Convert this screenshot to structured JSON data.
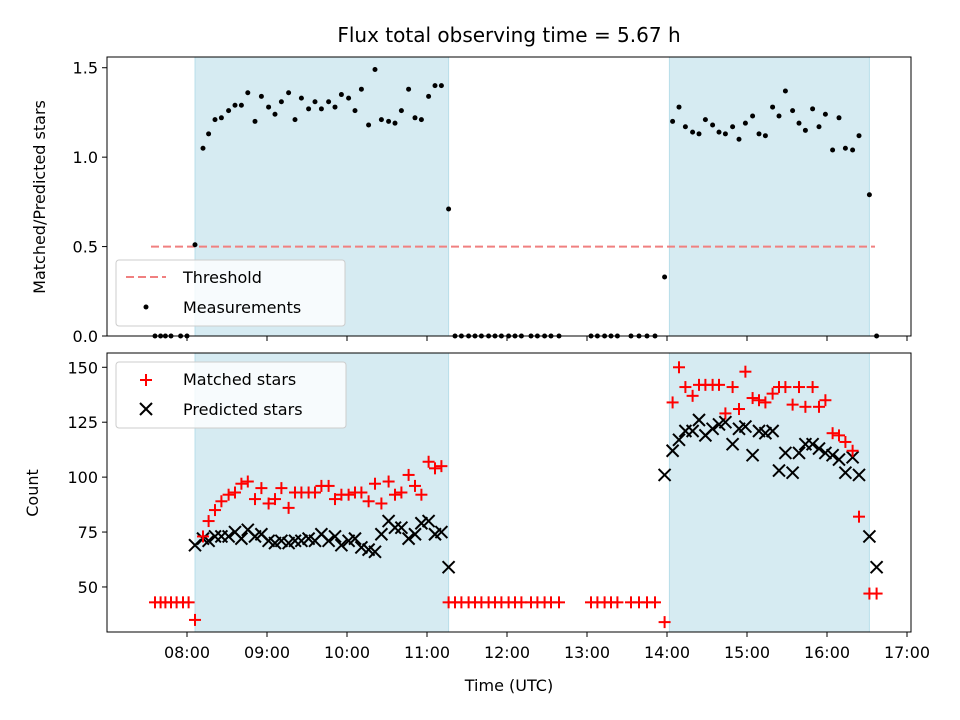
{
  "chart_data": [
    {
      "type": "scatter",
      "title": "Flux total observing time = 5.67 h",
      "ylabel": "Matched/Predicted stars",
      "xlabel": "",
      "xlim": [
        7.0,
        17.05
      ],
      "ylim": [
        0.0,
        1.56
      ],
      "yticks": [
        0.0,
        0.5,
        1.0,
        1.5
      ],
      "ytick_labels": [
        "0.0",
        "0.5",
        "1.0",
        "1.5"
      ],
      "shaded_spans": [
        [
          8.1,
          11.27
        ],
        [
          14.03,
          16.53
        ]
      ],
      "threshold": {
        "name": "Threshold",
        "y": 0.5,
        "x_range": [
          7.55,
          16.6
        ],
        "color": "#f08080"
      },
      "legend": {
        "placement": "lower-left",
        "entries": [
          "Threshold",
          "Measurements"
        ]
      },
      "series": [
        {
          "name": "Measurements",
          "marker": "dot",
          "color": "#000000",
          "x": [
            7.6,
            7.67,
            7.73,
            7.8,
            7.92,
            8.0,
            8.1,
            8.2,
            8.27,
            8.35,
            8.43,
            8.52,
            8.6,
            8.68,
            8.76,
            8.85,
            8.93,
            9.02,
            9.1,
            9.18,
            9.27,
            9.35,
            9.43,
            9.52,
            9.6,
            9.68,
            9.77,
            9.85,
            9.93,
            10.02,
            10.1,
            10.18,
            10.27,
            10.35,
            10.43,
            10.52,
            10.6,
            10.68,
            10.77,
            10.85,
            10.93,
            11.02,
            11.1,
            11.18,
            11.27,
            11.35,
            11.43,
            11.52,
            11.6,
            11.68,
            11.77,
            11.85,
            11.93,
            12.02,
            12.1,
            12.18,
            12.3,
            12.38,
            12.47,
            12.55,
            12.65,
            13.05,
            13.13,
            13.22,
            13.3,
            13.38,
            13.55,
            13.65,
            13.75,
            13.85,
            13.97,
            14.07,
            14.15,
            14.23,
            14.32,
            14.4,
            14.48,
            14.57,
            14.65,
            14.73,
            14.82,
            14.9,
            14.98,
            15.07,
            15.15,
            15.23,
            15.32,
            15.4,
            15.48,
            15.57,
            15.65,
            15.73,
            15.82,
            15.9,
            15.98,
            16.07,
            16.15,
            16.23,
            16.32,
            16.4,
            16.53,
            16.62
          ],
          "y": [
            0.0,
            0.0,
            0.0,
            0.0,
            0.0,
            0.0,
            0.51,
            1.05,
            1.13,
            1.21,
            1.22,
            1.26,
            1.29,
            1.29,
            1.36,
            1.2,
            1.34,
            1.28,
            1.24,
            1.31,
            1.36,
            1.21,
            1.33,
            1.27,
            1.31,
            1.27,
            1.31,
            1.28,
            1.35,
            1.33,
            1.26,
            1.38,
            1.18,
            1.49,
            1.21,
            1.2,
            1.19,
            1.26,
            1.38,
            1.22,
            1.21,
            1.34,
            1.4,
            1.4,
            0.71,
            0.0,
            0.0,
            0.0,
            0.0,
            0.0,
            0.0,
            0.0,
            0.0,
            0.0,
            0.0,
            0.0,
            0.0,
            0.0,
            0.0,
            0.0,
            0.0,
            0.0,
            0.0,
            0.0,
            0.0,
            0.0,
            0.0,
            0.0,
            0.0,
            0.0,
            0.33,
            1.2,
            1.28,
            1.17,
            1.14,
            1.13,
            1.21,
            1.18,
            1.14,
            1.13,
            1.17,
            1.1,
            1.19,
            1.23,
            1.13,
            1.12,
            1.28,
            1.23,
            1.37,
            1.26,
            1.19,
            1.15,
            1.27,
            1.17,
            1.24,
            1.04,
            1.22,
            1.05,
            1.04,
            1.12,
            0.79,
            0.0
          ]
        }
      ]
    },
    {
      "type": "scatter",
      "title": "",
      "ylabel": "Count",
      "xlabel": "Time (UTC)",
      "xlim": [
        7.0,
        17.05
      ],
      "ylim": [
        29.5,
        156.5
      ],
      "yticks": [
        50,
        75,
        100,
        125,
        150
      ],
      "ytick_labels": [
        "50",
        "75",
        "100",
        "125",
        "150"
      ],
      "xticks": [
        8,
        9,
        10,
        11,
        12,
        13,
        14,
        15,
        16,
        17
      ],
      "xtick_labels": [
        "08:00",
        "09:00",
        "10:00",
        "11:00",
        "12:00",
        "13:00",
        "14:00",
        "15:00",
        "16:00",
        "17:00"
      ],
      "shaded_spans": [
        [
          8.1,
          11.27
        ],
        [
          14.03,
          16.53
        ]
      ],
      "legend": {
        "placement": "upper-left",
        "entries": [
          "Matched stars",
          "Predicted stars"
        ]
      },
      "series": [
        {
          "name": "Matched stars",
          "marker": "plus",
          "color": "#ff0000",
          "x": [
            7.6,
            7.67,
            7.73,
            7.8,
            7.87,
            7.95,
            8.02,
            8.1,
            8.2,
            8.27,
            8.35,
            8.43,
            8.52,
            8.6,
            8.68,
            8.76,
            8.85,
            8.93,
            9.02,
            9.1,
            9.18,
            9.27,
            9.35,
            9.43,
            9.52,
            9.6,
            9.68,
            9.77,
            9.85,
            9.93,
            10.02,
            10.1,
            10.18,
            10.27,
            10.35,
            10.43,
            10.52,
            10.6,
            10.68,
            10.77,
            10.85,
            10.93,
            11.02,
            11.1,
            11.18,
            11.27,
            11.35,
            11.43,
            11.52,
            11.6,
            11.68,
            11.77,
            11.85,
            11.93,
            12.02,
            12.1,
            12.18,
            12.3,
            12.38,
            12.47,
            12.55,
            12.65,
            13.05,
            13.13,
            13.22,
            13.3,
            13.38,
            13.55,
            13.65,
            13.75,
            13.85,
            13.97,
            14.07,
            14.15,
            14.23,
            14.32,
            14.4,
            14.48,
            14.57,
            14.65,
            14.73,
            14.82,
            14.9,
            14.98,
            15.07,
            15.15,
            15.23,
            15.32,
            15.4,
            15.48,
            15.57,
            15.65,
            15.73,
            15.82,
            15.9,
            15.98,
            16.07,
            16.15,
            16.23,
            16.32,
            16.4,
            16.53,
            16.62
          ],
          "y": [
            43,
            43,
            43,
            43,
            43,
            43,
            43,
            35,
            73,
            80,
            85,
            89,
            92,
            93,
            97,
            98,
            90,
            95,
            88,
            90,
            95,
            86,
            93,
            93,
            93,
            93,
            96,
            96,
            90,
            92,
            92,
            93,
            93,
            89,
            97,
            88,
            98,
            92,
            93,
            101,
            96,
            92,
            107,
            104,
            105,
            43,
            43,
            43,
            43,
            43,
            43,
            43,
            43,
            43,
            43,
            43,
            43,
            43,
            43,
            43,
            43,
            43,
            43,
            43,
            43,
            43,
            43,
            43,
            43,
            43,
            43,
            34,
            134,
            150,
            141,
            137,
            142,
            142,
            142,
            142,
            129,
            141,
            131,
            148,
            136,
            135,
            134,
            138,
            141,
            141,
            133,
            141,
            132,
            141,
            132,
            135,
            120,
            119,
            116,
            112,
            82,
            47,
            47
          ]
        },
        {
          "name": "Predicted stars",
          "marker": "x",
          "color": "#000000",
          "x": [
            8.1,
            8.2,
            8.27,
            8.35,
            8.43,
            8.52,
            8.6,
            8.68,
            8.76,
            8.85,
            8.93,
            9.02,
            9.1,
            9.18,
            9.27,
            9.35,
            9.43,
            9.52,
            9.6,
            9.68,
            9.77,
            9.85,
            9.93,
            10.02,
            10.1,
            10.18,
            10.27,
            10.35,
            10.43,
            10.52,
            10.6,
            10.68,
            10.77,
            10.85,
            10.93,
            11.02,
            11.1,
            11.18,
            11.27,
            13.97,
            14.07,
            14.15,
            14.23,
            14.32,
            14.4,
            14.48,
            14.57,
            14.65,
            14.73,
            14.82,
            14.9,
            14.98,
            15.07,
            15.15,
            15.23,
            15.32,
            15.4,
            15.48,
            15.57,
            15.65,
            15.73,
            15.82,
            15.9,
            15.98,
            16.07,
            16.15,
            16.23,
            16.32,
            16.4,
            16.53,
            16.62
          ],
          "y": [
            69,
            72,
            71,
            73,
            73,
            73,
            75,
            72,
            76,
            73,
            74,
            71,
            70,
            71,
            70,
            71,
            71,
            72,
            71,
            74,
            71,
            73,
            69,
            71,
            72,
            68,
            67,
            66,
            74,
            80,
            77,
            77,
            72,
            74,
            79,
            80,
            74,
            75,
            59,
            101,
            112,
            117,
            121,
            121,
            126,
            119,
            122,
            124,
            125,
            115,
            122,
            123,
            110,
            121,
            120,
            121,
            103,
            111,
            102,
            111,
            115,
            115,
            113,
            111,
            110,
            108,
            102,
            109,
            101,
            73,
            59
          ]
        }
      ]
    }
  ]
}
